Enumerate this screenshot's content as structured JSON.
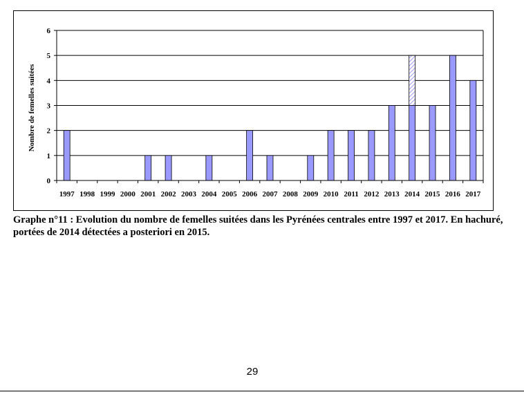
{
  "chart_data": {
    "type": "bar",
    "ylabel": "Nombre de femelles suitées",
    "xlabel": "",
    "ylim": [
      0,
      6
    ],
    "yticks": [
      0,
      1,
      2,
      3,
      4,
      5,
      6
    ],
    "grid": "horizontal",
    "categories": [
      "1997",
      "1998",
      "1999",
      "2000",
      "2001",
      "2002",
      "2003",
      "2004",
      "2005",
      "2006",
      "2007",
      "2008",
      "2009",
      "2010",
      "2011",
      "2012",
      "2013",
      "2014",
      "2015",
      "2016",
      "2017"
    ],
    "values": [
      2,
      0,
      0,
      0,
      1,
      1,
      0,
      1,
      0,
      2,
      1,
      0,
      1,
      2,
      2,
      2,
      3,
      5,
      3,
      5,
      4
    ],
    "hatched_segments": [
      {
        "category": "2014",
        "from": 3,
        "to": 5
      }
    ],
    "bar_color": "#9999ff",
    "hatch_color": "#9999ff"
  },
  "caption": "Graphe n°11 : Evolution du nombre de femelles suitées dans les Pyrénées centrales entre 1997 et 2017. En hachuré, portées de 2014 détectées a posteriori en 2015.",
  "page_number": "29"
}
